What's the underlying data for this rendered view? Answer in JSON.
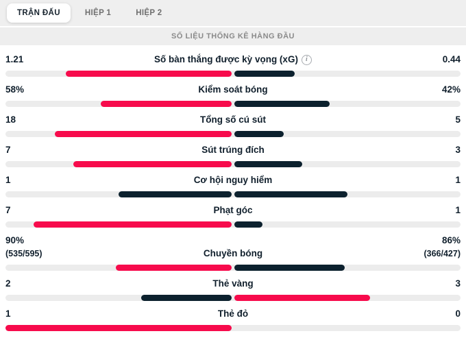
{
  "tabs": {
    "items": [
      {
        "label": "TRẬN ĐẤU",
        "active": true
      },
      {
        "label": "HIỆP 1",
        "active": false
      },
      {
        "label": "HIỆP 2",
        "active": false
      }
    ]
  },
  "section_header": "SỐ LIỆU THỐNG KÊ HÀNG ĐẦU",
  "info_icon_glyph": "i",
  "colors": {
    "highlight": "#f70b4c",
    "dark": "#0c212e",
    "track": "#ececec"
  },
  "chart_data": {
    "type": "bar",
    "note": "Paired horizontal comparison bars; each side length = share of stat total (in % of half track). Pink = leading side, dark navy = trailing side, both dark on tie.",
    "rows": [
      {
        "label": "Số bàn thắng được kỳ vọng (xG)",
        "has_info": true,
        "home": "1.21",
        "away": "0.44",
        "home_pct": 73.3,
        "away_pct": 26.7,
        "home_color": "highlight",
        "away_color": "dark"
      },
      {
        "label": "Kiểm soát bóng",
        "has_info": false,
        "home": "58%",
        "away": "42%",
        "home_pct": 58.0,
        "away_pct": 42.0,
        "home_color": "highlight",
        "away_color": "dark"
      },
      {
        "label": "Tổng số cú sút",
        "has_info": false,
        "home": "18",
        "away": "5",
        "home_pct": 78.3,
        "away_pct": 21.7,
        "home_color": "highlight",
        "away_color": "dark"
      },
      {
        "label": "Sút trúng đích",
        "has_info": false,
        "home": "7",
        "away": "3",
        "home_pct": 70.0,
        "away_pct": 30.0,
        "home_color": "highlight",
        "away_color": "dark"
      },
      {
        "label": "Cơ hội nguy hiểm",
        "has_info": false,
        "home": "1",
        "away": "1",
        "home_pct": 50.0,
        "away_pct": 50.0,
        "home_color": "dark",
        "away_color": "dark"
      },
      {
        "label": "Phạt góc",
        "has_info": false,
        "home": "7",
        "away": "1",
        "home_pct": 87.5,
        "away_pct": 12.5,
        "home_color": "highlight",
        "away_color": "dark"
      },
      {
        "label": "Chuyền bóng",
        "has_info": false,
        "home": "90%",
        "away": "86%",
        "home_sub": "(535/595)",
        "away_sub": "(366/427)",
        "home_pct": 51.1,
        "away_pct": 48.9,
        "home_color": "highlight",
        "away_color": "dark"
      },
      {
        "label": "Thẻ vàng",
        "has_info": false,
        "home": "2",
        "away": "3",
        "home_pct": 40.0,
        "away_pct": 60.0,
        "home_color": "dark",
        "away_color": "highlight"
      },
      {
        "label": "Thẻ đỏ",
        "has_info": false,
        "home": "1",
        "away": "0",
        "home_pct": 100.0,
        "away_pct": 0.0,
        "home_color": "highlight",
        "away_color": "dark"
      }
    ]
  }
}
